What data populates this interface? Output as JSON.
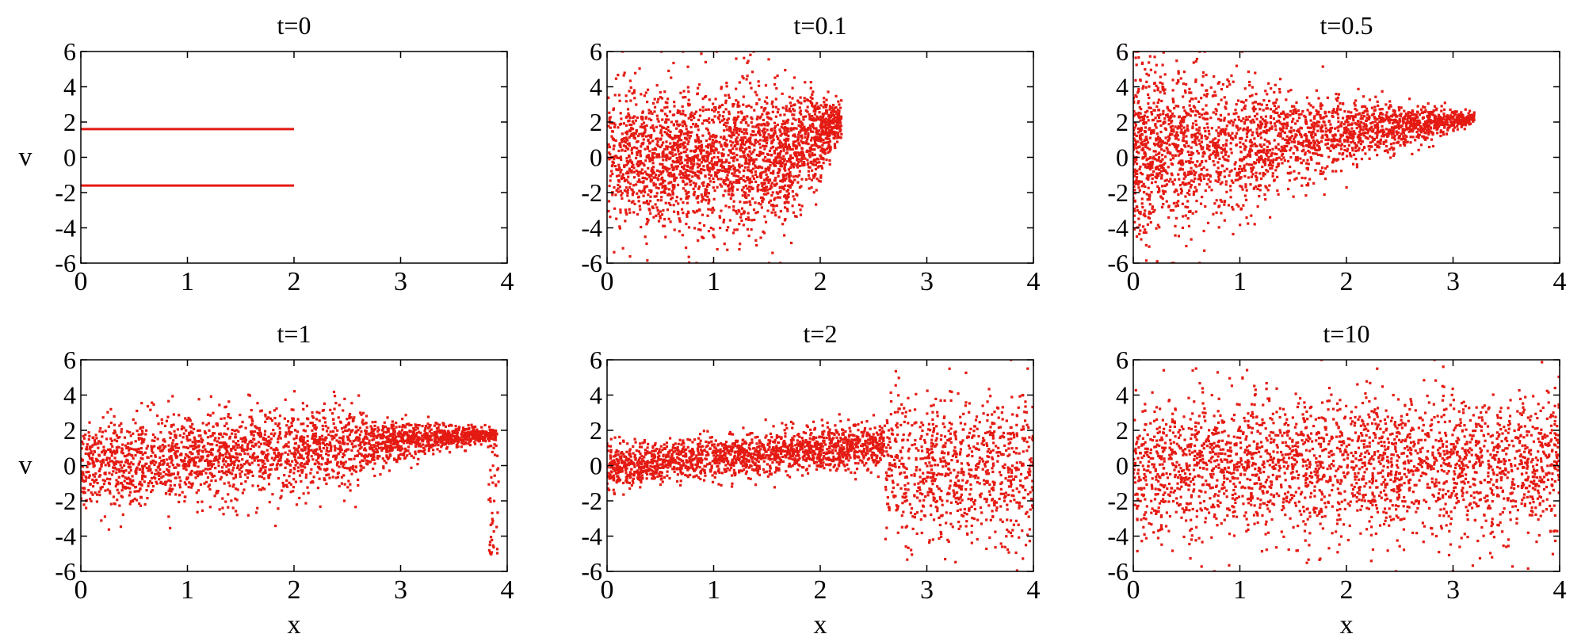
{
  "figure": {
    "color": "#e41a13",
    "background": "#ffffff"
  },
  "chart_data": [
    {
      "type": "scatter",
      "title": "t=0",
      "xlabel": "",
      "ylabel": "v",
      "xlim": [
        0,
        4
      ],
      "ylim": [
        -6,
        6
      ],
      "xticks": [
        "0",
        "1",
        "2",
        "3",
        "4"
      ],
      "yticks": [
        "-6",
        "-4",
        "-2",
        "0",
        "2",
        "4",
        "6"
      ],
      "distribution": {
        "kind": "two-beams",
        "beams": [
          1.6,
          -1.6
        ],
        "x_range": [
          0,
          2
        ]
      },
      "grid": false
    },
    {
      "type": "scatter",
      "title": "t=0.1",
      "xlabel": "",
      "ylabel": "",
      "xlim": [
        0,
        4
      ],
      "ylim": [
        -6,
        6
      ],
      "xticks": [
        "0",
        "1",
        "2",
        "3",
        "4"
      ],
      "yticks": [
        "-6",
        "-4",
        "-2",
        "0",
        "2",
        "4",
        "6"
      ],
      "distribution": {
        "kind": "spreading-block",
        "x_range": [
          0,
          2.2
        ],
        "v_center": 0,
        "v_spread": 2.6,
        "tip": [
          2.2,
          2.2
        ]
      },
      "grid": false
    },
    {
      "type": "scatter",
      "title": "t=0.5",
      "xlabel": "",
      "ylabel": "",
      "xlim": [
        0,
        4
      ],
      "ylim": [
        -6,
        6
      ],
      "xticks": [
        "0",
        "1",
        "2",
        "3",
        "4"
      ],
      "yticks": [
        "-6",
        "-4",
        "-2",
        "0",
        "2",
        "4",
        "6"
      ],
      "distribution": {
        "kind": "cone",
        "x_range": [
          0,
          3.2
        ],
        "v_center": 0,
        "v_spread": 3.0,
        "tip": [
          3.2,
          2.2
        ],
        "step_x": 1.3
      },
      "grid": false
    },
    {
      "type": "scatter",
      "title": "t=1",
      "xlabel": "x",
      "ylabel": "v",
      "xlim": [
        0,
        4
      ],
      "ylim": [
        -6,
        6
      ],
      "xticks": [
        "0",
        "1",
        "2",
        "3",
        "4"
      ],
      "yticks": [
        "-6",
        "-4",
        "-2",
        "0",
        "2",
        "4",
        "6"
      ],
      "distribution": {
        "kind": "band-with-tail",
        "x_range": [
          0,
          3.9
        ],
        "band_end": 2.65,
        "v_center_start": 0,
        "v_center_end": 1.8,
        "v_spread": 1.6
      },
      "grid": false
    },
    {
      "type": "scatter",
      "title": "t=2",
      "xlabel": "x",
      "ylabel": "",
      "xlim": [
        0,
        4
      ],
      "ylim": [
        -6,
        6
      ],
      "xticks": [
        "0",
        "1",
        "2",
        "3",
        "4"
      ],
      "yticks": [
        "-6",
        "-4",
        "-2",
        "0",
        "2",
        "4",
        "6"
      ],
      "distribution": {
        "kind": "band-then-wide",
        "x_range": [
          0,
          4
        ],
        "band_end": 2.6,
        "v_center_start": 0,
        "v_center_end": 1.2,
        "v_spread": 1.0,
        "wide_spread": 3.5
      },
      "grid": false
    },
    {
      "type": "scatter",
      "title": "t=10",
      "xlabel": "x",
      "ylabel": "",
      "xlim": [
        0,
        4
      ],
      "ylim": [
        -6,
        6
      ],
      "xticks": [
        "0",
        "1",
        "2",
        "3",
        "4"
      ],
      "yticks": [
        "-6",
        "-4",
        "-2",
        "0",
        "2",
        "4",
        "6"
      ],
      "distribution": {
        "kind": "uniform-band",
        "x_range": [
          0,
          4
        ],
        "v_center": 0,
        "v_spread": 2.6
      },
      "grid": false
    }
  ]
}
